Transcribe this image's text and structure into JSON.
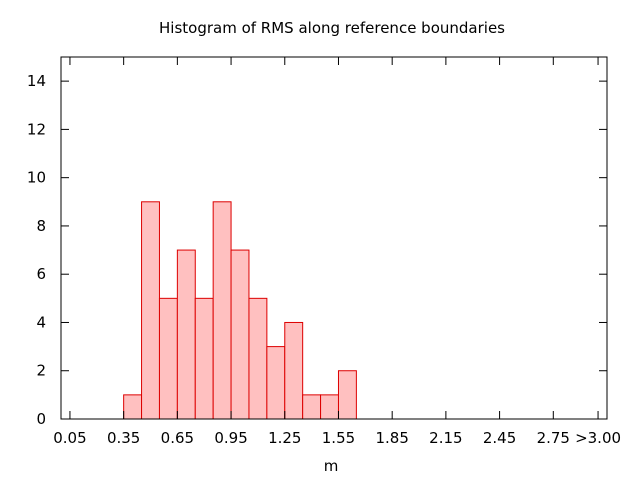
{
  "chart_data": {
    "type": "bar",
    "title": "Histogram of RMS along reference boundaries",
    "xlabel": "m",
    "ylabel": "",
    "bin_width": 0.1,
    "bin_starts": [
      0.05,
      0.15,
      0.25,
      0.35,
      0.45,
      0.55,
      0.65,
      0.75,
      0.85,
      0.95,
      1.05,
      1.15,
      1.25,
      1.35,
      1.45,
      1.55,
      1.65,
      1.75,
      1.85,
      1.95,
      2.05,
      2.15,
      2.25,
      2.35,
      2.45,
      2.55,
      2.65,
      2.75,
      2.85,
      2.95
    ],
    "values": [
      0,
      0,
      0,
      1,
      9,
      5,
      7,
      5,
      9,
      7,
      5,
      3,
      4,
      1,
      1,
      2,
      0,
      0,
      0,
      0,
      0,
      0,
      0,
      0,
      0,
      0,
      0,
      0,
      0,
      0
    ],
    "xlim": [
      0.0,
      3.05
    ],
    "ylim": [
      0,
      15
    ],
    "x_tick_labels": [
      "0.05",
      "0.35",
      "0.65",
      "0.95",
      "1.25",
      "1.55",
      "1.85",
      "2.15",
      "2.45",
      "2.75",
      ">3.00"
    ],
    "x_tick_values": [
      0.05,
      0.35,
      0.65,
      0.95,
      1.25,
      1.55,
      1.85,
      2.15,
      2.45,
      2.75,
      3.0
    ],
    "y_tick_labels": [
      "0",
      "2",
      "4",
      "6",
      "8",
      "10",
      "12",
      "14"
    ],
    "y_tick_values": [
      0,
      2,
      4,
      6,
      8,
      10,
      12,
      14
    ],
    "grid": false,
    "legend": "none",
    "colors": {
      "bar_fill": "#ffc0c0",
      "bar_stroke": "#dd0000",
      "axis": "#000000"
    }
  }
}
